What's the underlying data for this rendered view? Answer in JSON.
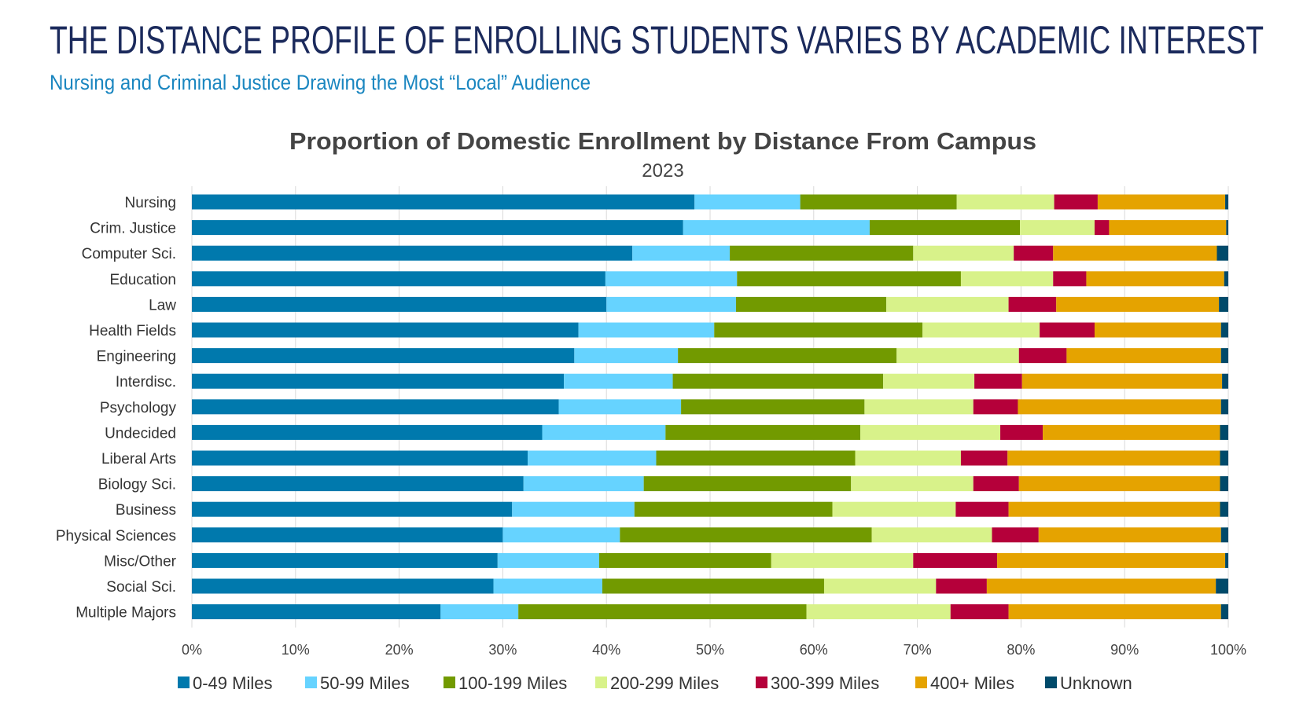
{
  "header": {
    "title": "THE DISTANCE PROFILE OF ENROLLING STUDENTS VARIES BY ACADEMIC INTEREST",
    "subtitle": "Nursing and Criminal Justice Drawing the Most “Local” Audience"
  },
  "colors": {
    "title": "#1B2A5C",
    "subtitle": "#1A86C0"
  },
  "chart_data": {
    "type": "bar",
    "orientation": "horizontal",
    "stacked": "100%",
    "title": "Proportion of Domestic Enrollment by Distance From Campus",
    "subtitle": "2023",
    "xlabel": "",
    "ylabel": "",
    "xlim": [
      0,
      100
    ],
    "x_ticks": [
      "0%",
      "10%",
      "20%",
      "30%",
      "40%",
      "50%",
      "60%",
      "70%",
      "80%",
      "90%",
      "100%"
    ],
    "grid": "vertical",
    "legend_position": "bottom",
    "categories": [
      "Nursing",
      "Crim. Justice",
      "Computer Sci.",
      "Education",
      "Law",
      "Health Fields",
      "Engineering",
      "Interdisc.",
      "Psychology",
      "Undecided",
      "Liberal Arts",
      "Biology Sci.",
      "Business",
      "Physical Sciences",
      "Misc/Other",
      "Social Sci.",
      "Multiple Majors"
    ],
    "series": [
      {
        "name": "0-49 Miles",
        "color": "#0079AD",
        "values": [
          48.5,
          47.4,
          42.5,
          39.9,
          40.0,
          37.3,
          36.9,
          35.9,
          35.4,
          33.8,
          32.4,
          32.0,
          30.9,
          30.0,
          29.5,
          29.1,
          24.0
        ]
      },
      {
        "name": "50-99 Miles",
        "color": "#66D3FF",
        "values": [
          10.2,
          18.0,
          9.4,
          12.7,
          12.5,
          13.1,
          10.0,
          10.5,
          11.8,
          11.9,
          12.4,
          11.6,
          11.8,
          11.3,
          9.8,
          10.5,
          7.5
        ]
      },
      {
        "name": "100-199 Miles",
        "color": "#729A00",
        "values": [
          15.1,
          14.5,
          17.7,
          21.6,
          14.5,
          20.1,
          21.1,
          20.3,
          17.7,
          18.8,
          19.2,
          20.0,
          19.1,
          24.3,
          16.6,
          21.4,
          27.8
        ]
      },
      {
        "name": "200-299 Miles",
        "color": "#D8F28A",
        "values": [
          9.4,
          7.2,
          9.7,
          8.9,
          11.8,
          11.3,
          11.8,
          8.8,
          10.5,
          13.5,
          10.2,
          11.8,
          11.9,
          11.6,
          13.7,
          10.8,
          13.9
        ]
      },
      {
        "name": "300-399 Miles",
        "color": "#B5003A",
        "values": [
          4.2,
          1.4,
          3.8,
          3.2,
          4.6,
          5.3,
          4.6,
          4.6,
          4.3,
          4.1,
          4.5,
          4.4,
          5.1,
          4.5,
          8.1,
          4.9,
          5.6
        ]
      },
      {
        "name": "400+ Miles",
        "color": "#E5A300",
        "values": [
          12.3,
          11.3,
          15.8,
          13.3,
          15.7,
          12.2,
          14.9,
          19.3,
          19.6,
          17.1,
          20.5,
          19.4,
          20.4,
          17.6,
          22.0,
          22.1,
          20.5
        ]
      },
      {
        "name": "Unknown",
        "color": "#004A6A",
        "values": [
          0.3,
          0.2,
          1.1,
          0.4,
          0.9,
          0.7,
          0.7,
          0.6,
          0.7,
          0.8,
          0.8,
          0.8,
          0.8,
          0.7,
          0.3,
          1.2,
          0.7
        ]
      }
    ]
  }
}
